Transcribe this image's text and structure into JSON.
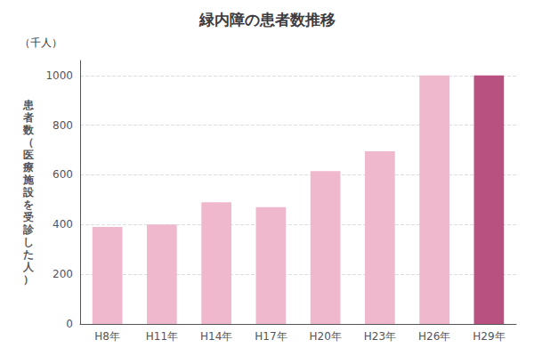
{
  "chart_data": {
    "type": "bar",
    "title": "緑内障の患者数推移",
    "ylabel": "患者数（医療施設を受診した人）",
    "annotations": [
      "（千人）"
    ],
    "categories": [
      "H8年",
      "H11年",
      "H14年",
      "H17年",
      "H20年",
      "H23年",
      "H26年",
      "H29年"
    ],
    "values": [
      390,
      400,
      490,
      470,
      615,
      695,
      1000,
      1000
    ],
    "colors": [
      "#f0b8cc",
      "#f0b8cc",
      "#f0b8cc",
      "#f0b8cc",
      "#f0b8cc",
      "#f0b8cc",
      "#f0b8cc",
      "#b85080"
    ],
    "ylim": [
      0,
      1060
    ],
    "yticks": [
      0,
      200,
      400,
      600,
      800,
      1000
    ],
    "grid": true
  }
}
